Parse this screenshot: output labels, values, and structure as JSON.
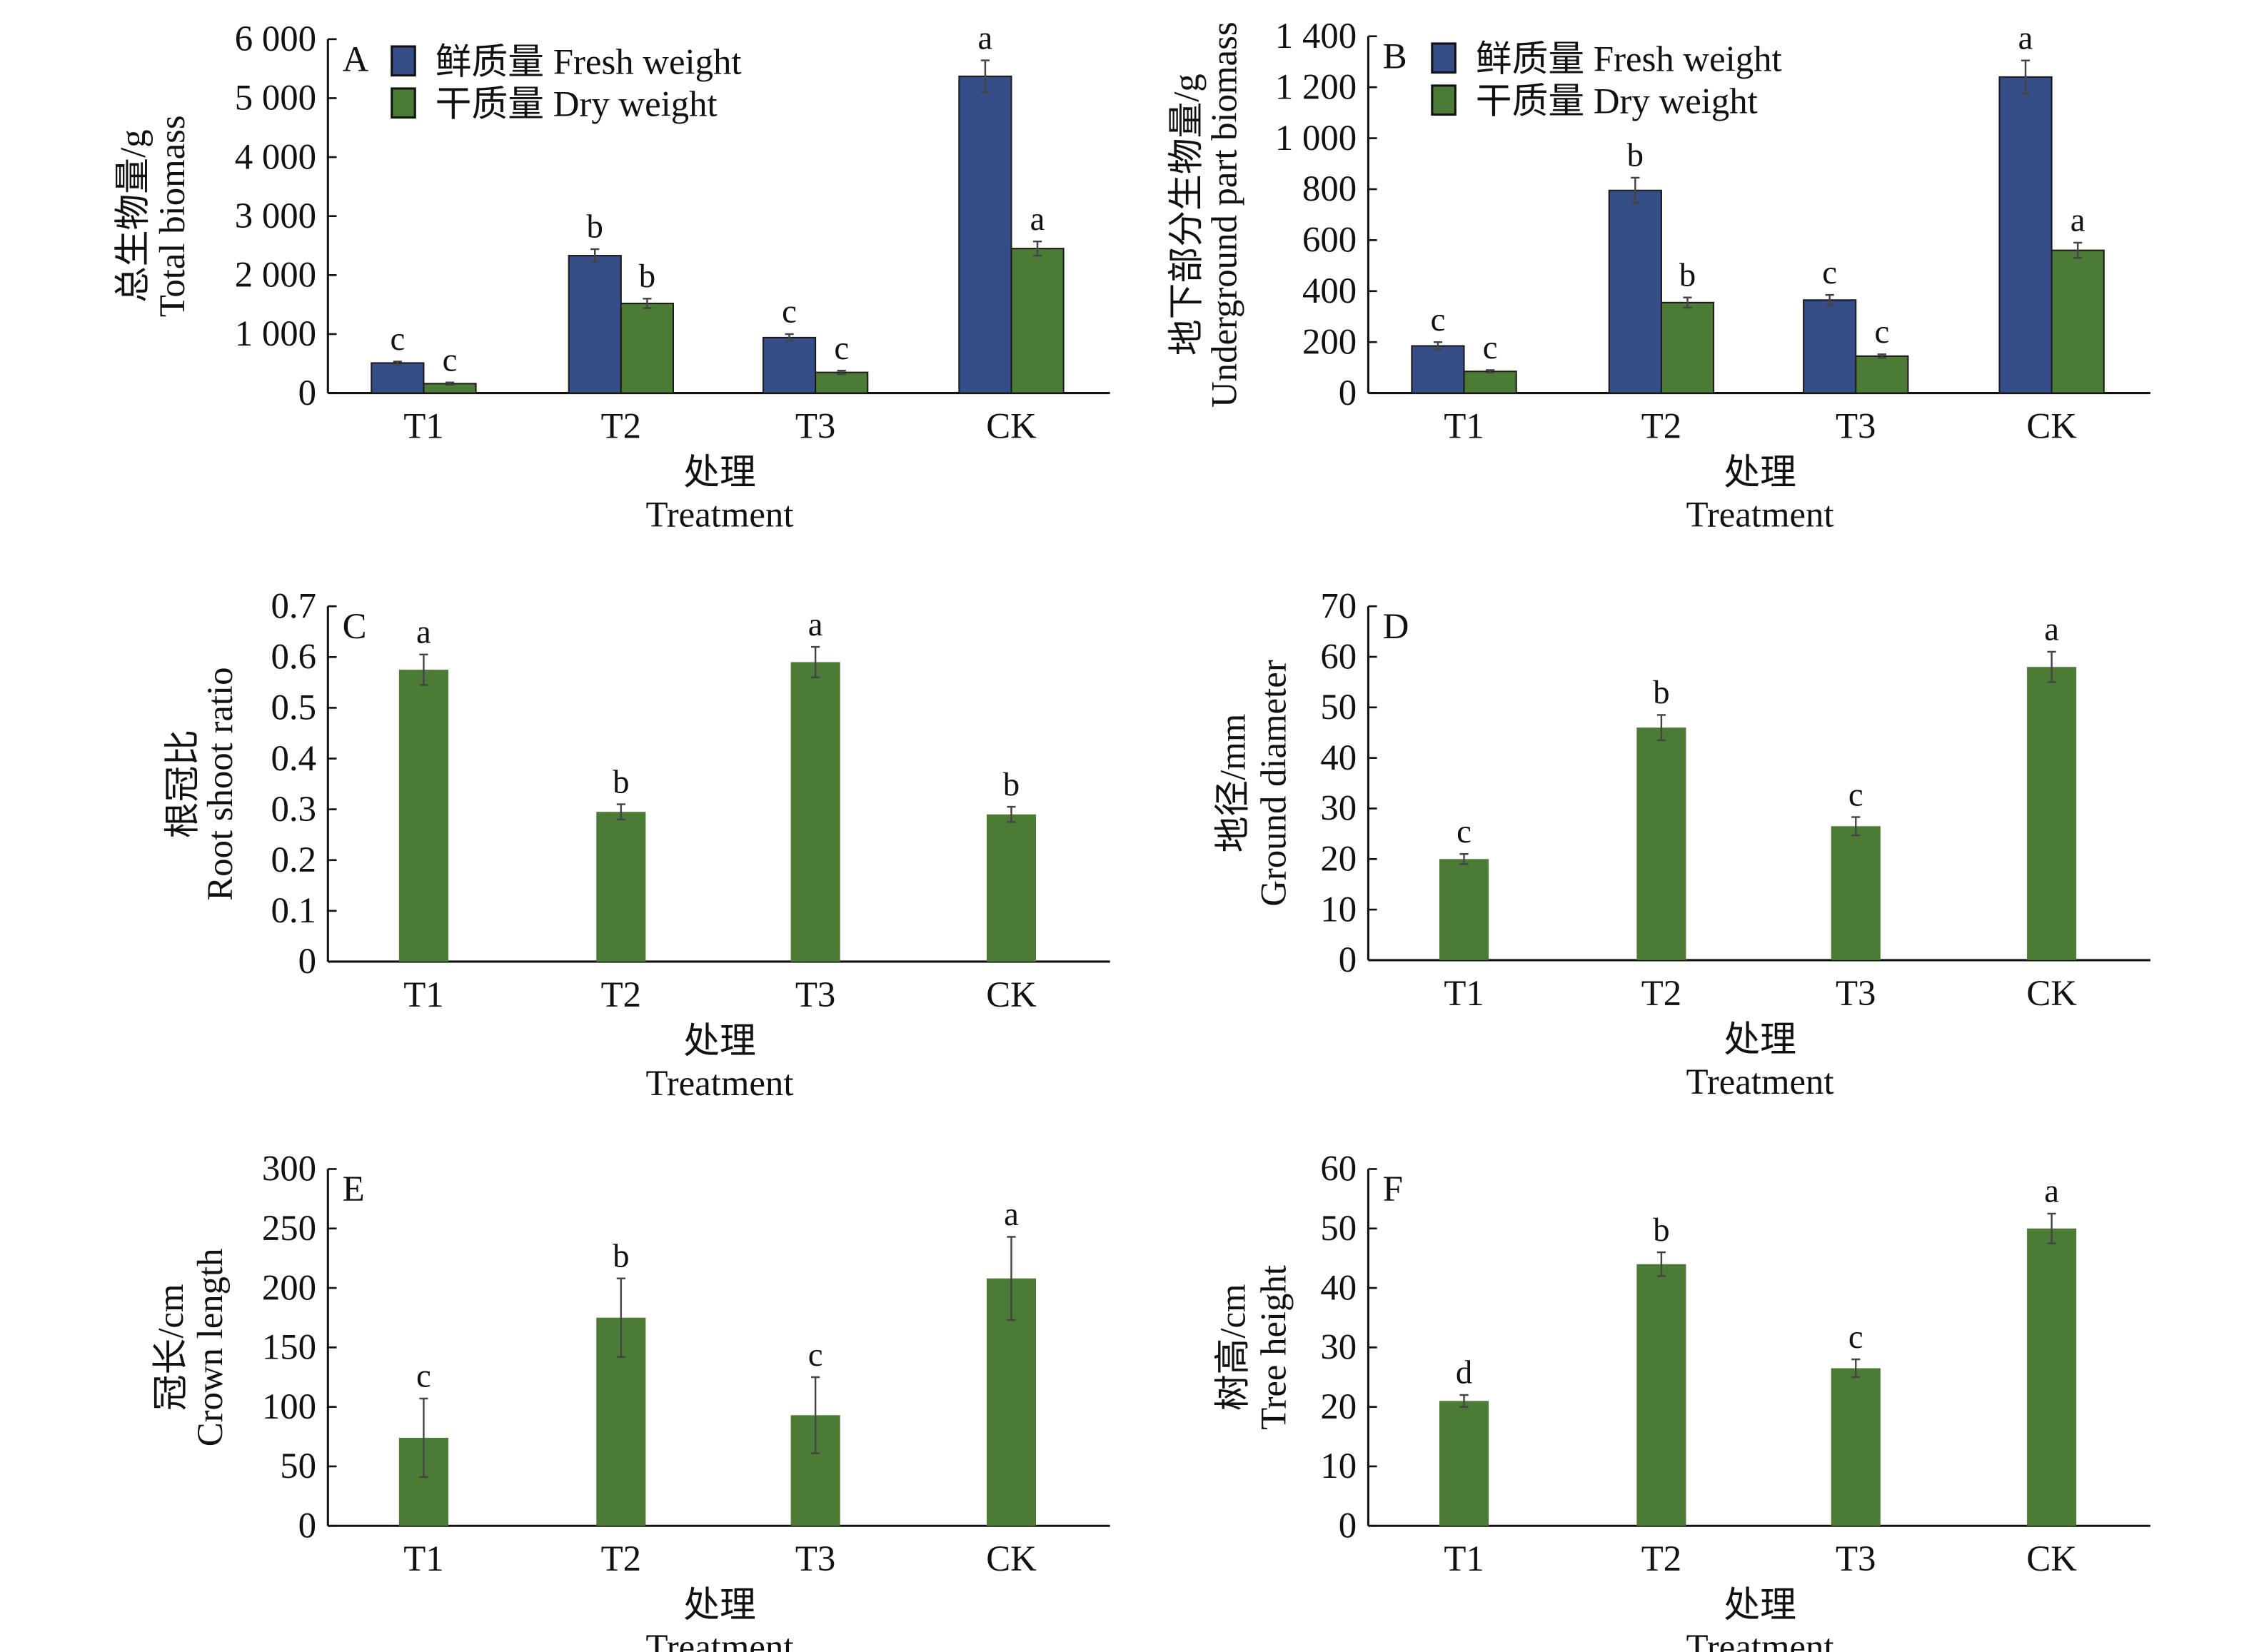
{
  "colors": {
    "fresh": "#364d87",
    "dry": "#4c7b36",
    "axis": "#111111",
    "error_bar": "#444444"
  },
  "chart_data": [
    {
      "panel": "A",
      "type": "bar",
      "categories": [
        "T1",
        "T2",
        "T3",
        "CK"
      ],
      "xlabel_cn": "处理",
      "xlabel_en": "Treatment",
      "ylabel_cn": "总生物量/g",
      "ylabel_en": "Total biomass",
      "ylim": [
        0,
        6000
      ],
      "yticks": [
        0,
        1000,
        2000,
        3000,
        4000,
        5000,
        6000
      ],
      "ytick_labels": [
        "0",
        "1 000",
        "2 000",
        "3 000",
        "4 000",
        "5 000",
        "6 000"
      ],
      "legend": "top-left",
      "series": [
        {
          "name": "鲜质量 Fresh weight",
          "color_key": "fresh",
          "values": [
            510,
            2330,
            940,
            5370
          ],
          "errors": [
            25,
            110,
            60,
            270
          ],
          "letters": [
            "c",
            "b",
            "c",
            "a"
          ]
        },
        {
          "name": "干质量 Dry weight",
          "color_key": "dry",
          "values": [
            160,
            1520,
            350,
            2450
          ],
          "errors": [
            20,
            80,
            30,
            120
          ],
          "letters": [
            "c",
            "b",
            "c",
            "a"
          ]
        }
      ]
    },
    {
      "panel": "B",
      "type": "bar",
      "categories": [
        "T1",
        "T2",
        "T3",
        "CK"
      ],
      "xlabel_cn": "处理",
      "xlabel_en": "Treatment",
      "ylabel_cn": "地下部分生物量/g",
      "ylabel_en": "Underground part biomass",
      "ylim": [
        0,
        1400
      ],
      "yticks": [
        0,
        200,
        400,
        600,
        800,
        1000,
        1200,
        1400
      ],
      "ytick_labels": [
        "0",
        "200",
        "400",
        "600",
        "800",
        "1 000",
        "1 200",
        "1 400"
      ],
      "legend": "top-left",
      "series": [
        {
          "name": "鲜质量 Fresh weight",
          "color_key": "fresh",
          "values": [
            185,
            795,
            365,
            1240
          ],
          "errors": [
            15,
            50,
            20,
            65
          ],
          "letters": [
            "c",
            "b",
            "c",
            "a"
          ]
        },
        {
          "name": "干质量 Dry weight",
          "color_key": "dry",
          "values": [
            85,
            355,
            145,
            560
          ],
          "errors": [
            5,
            20,
            7,
            30
          ],
          "letters": [
            "c",
            "b",
            "c",
            "a"
          ]
        }
      ]
    },
    {
      "panel": "C",
      "type": "bar",
      "categories": [
        "T1",
        "T2",
        "T3",
        "CK"
      ],
      "xlabel_cn": "处理",
      "xlabel_en": "Treatment",
      "ylabel_cn": "根冠比",
      "ylabel_en": "Root shoot ratio",
      "ylim": [
        0,
        0.7
      ],
      "yticks": [
        0,
        0.1,
        0.2,
        0.3,
        0.4,
        0.5,
        0.6,
        0.7
      ],
      "ytick_labels": [
        "0",
        "0.1",
        "0.2",
        "0.3",
        "0.4",
        "0.5",
        "0.6",
        "0.7"
      ],
      "series": [
        {
          "color_key": "dry",
          "values": [
            0.575,
            0.295,
            0.59,
            0.29
          ],
          "errors": [
            0.03,
            0.015,
            0.03,
            0.015
          ],
          "letters": [
            "a",
            "b",
            "a",
            "b"
          ]
        }
      ]
    },
    {
      "panel": "D",
      "type": "bar",
      "categories": [
        "T1",
        "T2",
        "T3",
        "CK"
      ],
      "xlabel_cn": "处理",
      "xlabel_en": "Treatment",
      "ylabel_cn": "地径/mm",
      "ylabel_en": "Ground diameter",
      "ylim": [
        0,
        70
      ],
      "yticks": [
        0,
        10,
        20,
        30,
        40,
        50,
        60,
        70
      ],
      "ytick_labels": [
        "0",
        "10",
        "20",
        "30",
        "40",
        "50",
        "60",
        "70"
      ],
      "series": [
        {
          "color_key": "dry",
          "values": [
            20,
            46,
            26.5,
            58
          ],
          "errors": [
            1,
            2.5,
            1.8,
            3
          ],
          "letters": [
            "c",
            "b",
            "c",
            "a"
          ]
        }
      ]
    },
    {
      "panel": "E",
      "type": "bar",
      "categories": [
        "T1",
        "T2",
        "T3",
        "CK"
      ],
      "xlabel_cn": "处理",
      "xlabel_en": "Treatment",
      "ylabel_cn": "冠长/cm",
      "ylabel_en": "Crown length",
      "ylim": [
        0,
        300
      ],
      "yticks": [
        0,
        50,
        100,
        150,
        200,
        250,
        300
      ],
      "ytick_labels": [
        "0",
        "50",
        "100",
        "150",
        "200",
        "250",
        "300"
      ],
      "series": [
        {
          "color_key": "dry",
          "values": [
            74,
            175,
            93,
            208
          ],
          "errors": [
            33,
            33,
            32,
            35
          ],
          "letters": [
            "c",
            "b",
            "c",
            "a"
          ]
        }
      ]
    },
    {
      "panel": "F",
      "type": "bar",
      "categories": [
        "T1",
        "T2",
        "T3",
        "CK"
      ],
      "xlabel_cn": "处理",
      "xlabel_en": "Treatment",
      "ylabel_cn": "树高/cm",
      "ylabel_en": "Tree height",
      "ylim": [
        0,
        60
      ],
      "yticks": [
        0,
        10,
        20,
        30,
        40,
        50,
        60
      ],
      "ytick_labels": [
        "0",
        "10",
        "20",
        "30",
        "40",
        "50",
        "60"
      ],
      "series": [
        {
          "color_key": "dry",
          "values": [
            21,
            44,
            26.5,
            50
          ],
          "errors": [
            1,
            2,
            1.5,
            2.5
          ],
          "letters": [
            "d",
            "b",
            "c",
            "a"
          ]
        }
      ]
    }
  ]
}
